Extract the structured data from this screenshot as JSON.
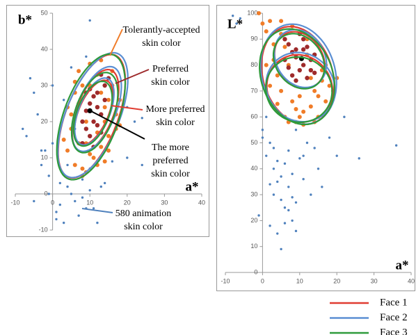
{
  "chart_data": [
    {
      "type": "scatter",
      "xlabel": "a*",
      "ylabel": "b*",
      "xlim": [
        -10,
        40
      ],
      "xticks": [
        -10,
        0,
        10,
        20,
        30,
        40
      ],
      "ylim": [
        -10,
        50
      ],
      "yticks": [
        -10,
        0,
        10,
        20,
        30,
        40,
        50
      ],
      "series": [
        {
          "color": "#4f81bd",
          "x": [
            -8,
            -7,
            -6,
            -5,
            -4,
            -3,
            -2,
            -1,
            0,
            1,
            2,
            3,
            4,
            5,
            6,
            7,
            8,
            9,
            10,
            12,
            14,
            16,
            18,
            20,
            22,
            24,
            -5,
            -3,
            0,
            2,
            4,
            6,
            8,
            10,
            3,
            5,
            1,
            7,
            9,
            10,
            20,
            24,
            13,
            11,
            -1
          ],
          "values": [
            18,
            16,
            32,
            28,
            22,
            8,
            12,
            5,
            30,
            -5,
            -3,
            -8,
            2,
            0,
            -2,
            -6,
            4,
            -4,
            1,
            -8,
            3,
            9,
            26,
            24,
            20,
            21,
            -2,
            12,
            14,
            3,
            8,
            18,
            -1,
            7,
            26,
            35,
            -7,
            14,
            38,
            48,
            10,
            8,
            2,
            -4,
            0
          ]
        },
        {
          "color": "#f07c28",
          "x": [
            4,
            5,
            6,
            7,
            8,
            9,
            10,
            11,
            12,
            13,
            14,
            15,
            16,
            17,
            18,
            3,
            5,
            7,
            9,
            11,
            13,
            15,
            17,
            6,
            8,
            10,
            12,
            14,
            16,
            4,
            6,
            8,
            12,
            14,
            18,
            10,
            9,
            13,
            7,
            15
          ],
          "values": [
            12,
            18,
            8,
            25,
            30,
            14,
            36,
            10,
            33,
            28,
            20,
            16,
            30,
            22,
            26,
            15,
            22,
            14,
            6,
            27,
            37,
            12,
            18,
            31,
            7,
            11,
            17,
            9,
            34,
            24,
            28,
            5,
            8,
            24,
            19,
            30,
            20,
            13,
            34,
            26
          ]
        },
        {
          "color": "#9e2a2b",
          "x": [
            8,
            9,
            10,
            11,
            12,
            13,
            14,
            9,
            10,
            11,
            12,
            13,
            10,
            11,
            12,
            14,
            8,
            9,
            15,
            13
          ],
          "values": [
            14,
            18,
            25,
            20,
            28,
            22,
            30,
            23,
            16,
            27,
            19,
            33,
            29,
            13,
            24,
            26,
            20,
            28,
            32,
            17
          ]
        },
        {
          "color": "#000000",
          "x": [
            10
          ],
          "values": [
            23
          ]
        }
      ],
      "ellipses": [
        [
          [
            10.5,
            21.5,
            7,
            18,
            -20
          ],
          [
            11.5,
            23,
            5,
            12,
            -20
          ],
          [
            11,
            22.5,
            4,
            9.5,
            -22
          ]
        ],
        [
          [
            10.8,
            21.8,
            7.2,
            18.3,
            -21
          ],
          [
            11.8,
            23.5,
            5.3,
            12.4,
            -21
          ],
          [
            11.2,
            22.8,
            4.2,
            9.8,
            -21
          ]
        ],
        [
          [
            10.3,
            21.3,
            7.4,
            18.2,
            -19
          ],
          [
            11.3,
            22.5,
            5.2,
            11.6,
            -19
          ],
          [
            10.8,
            22.2,
            4.3,
            9.4,
            -20
          ]
        ]
      ],
      "annotations": [
        {
          "lines": [
            "Tolerantly-accepted",
            "skin color"
          ],
          "color": "#f07c28"
        },
        {
          "lines": [
            "Preferred",
            "skin color"
          ],
          "color": "#9e2a2b"
        },
        {
          "lines": [
            "More preferred",
            "skin color"
          ],
          "color": "#e03c31"
        },
        {
          "lines": [
            "The more",
            "preferred",
            "skin color"
          ],
          "color": "#000000"
        },
        {
          "lines": [
            "580 animation",
            "skin color"
          ],
          "color": "#4f81bd"
        }
      ]
    },
    {
      "type": "scatter",
      "xlabel": "a*",
      "ylabel": "L*",
      "xlim": [
        -10,
        40
      ],
      "xticks": [
        -10,
        0,
        10,
        20,
        30,
        40
      ],
      "ylim": [
        0,
        100
      ],
      "yticks": [
        0,
        10,
        20,
        30,
        40,
        50,
        60,
        70,
        80,
        90,
        100
      ],
      "series": [
        {
          "color": "#4f81bd",
          "x": [
            -8,
            -6,
            -1,
            0,
            1,
            2,
            2,
            3,
            3,
            4,
            4,
            5,
            5,
            6,
            6,
            7,
            7,
            8,
            8,
            9,
            9,
            10,
            11,
            12,
            13,
            14,
            15,
            16,
            18,
            20,
            22,
            26,
            36,
            1,
            3,
            5,
            7,
            9,
            0,
            2,
            4,
            6,
            8,
            11,
            -7
          ],
          "values": [
            99,
            98,
            22,
            55,
            45,
            50,
            18,
            30,
            40,
            15,
            35,
            9,
            28,
            42,
            25,
            47,
            33,
            20,
            38,
            27,
            55,
            44,
            36,
            50,
            30,
            48,
            40,
            33,
            52,
            45,
            60,
            44,
            49,
            60,
            48,
            37,
            24,
            16,
            52,
            34,
            43,
            19,
            29,
            45,
            96
          ]
        },
        {
          "color": "#f07c28",
          "x": [
            2,
            3,
            4,
            5,
            6,
            7,
            8,
            9,
            10,
            11,
            12,
            13,
            14,
            15,
            16,
            17,
            18,
            3,
            5,
            7,
            9,
            11,
            13,
            15,
            17,
            4,
            6,
            8,
            10,
            12,
            14,
            16,
            1,
            19,
            0,
            2,
            5,
            20,
            -1,
            1
          ],
          "values": [
            72,
            88,
            65,
            92,
            60,
            80,
            95,
            58,
            68,
            62,
            90,
            64,
            70,
            60,
            78,
            66,
            72,
            82,
            70,
            58,
            63,
            57,
            75,
            68,
            80,
            76,
            87,
            66,
            60,
            84,
            58,
            74,
            80,
            70,
            96,
            97,
            97,
            75,
            100,
            93
          ]
        },
        {
          "color": "#9e2a2b",
          "x": [
            6,
            7,
            8,
            9,
            10,
            11,
            12,
            13,
            14,
            7,
            9,
            11,
            13,
            8,
            10,
            12,
            6,
            14,
            9,
            11
          ],
          "values": [
            82,
            88,
            76,
            86,
            92,
            80,
            87,
            78,
            84,
            79,
            74,
            90,
            82,
            85,
            78,
            75,
            90,
            77,
            83,
            86
          ]
        },
        {
          "color": "#000000",
          "x": [
            10.5
          ],
          "values": [
            82.5
          ]
        }
      ],
      "ellipses": [
        [
          [
            9.5,
            76,
            9.5,
            19,
            8
          ],
          [
            10,
            71,
            8.8,
            13,
            5
          ],
          [
            10,
            82,
            6.5,
            11,
            12
          ]
        ],
        [
          [
            9.7,
            76.5,
            10,
            19.4,
            7
          ],
          [
            10.2,
            71.5,
            9.2,
            13.4,
            6
          ],
          [
            10.2,
            82.5,
            6.8,
            11.3,
            11
          ]
        ],
        [
          [
            9.3,
            75.5,
            9.8,
            18.6,
            9
          ],
          [
            9.8,
            70.5,
            8.9,
            12.6,
            4
          ],
          [
            9.8,
            81.5,
            6.6,
            10.8,
            13
          ]
        ]
      ]
    }
  ],
  "legend": [
    {
      "name": "Face 1",
      "color": "#e03c31"
    },
    {
      "name": "Face 2",
      "color": "#5b8fd3"
    },
    {
      "name": "Face 3",
      "color": "#2e9a3a"
    }
  ]
}
